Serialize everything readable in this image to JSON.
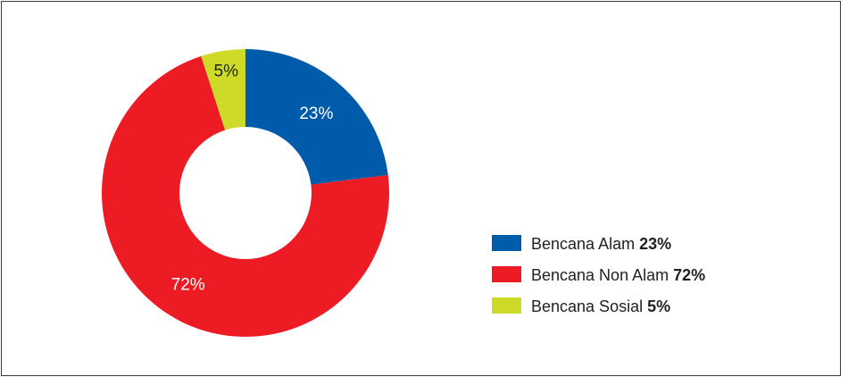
{
  "chart_data": {
    "type": "pie",
    "donut": true,
    "title": "",
    "slices": [
      {
        "label": "Bencana Alam",
        "value": 23,
        "value_label": "23%",
        "color": "#005baa",
        "label_color": "#ffffff"
      },
      {
        "label": "Bencana Non Alam",
        "value": 72,
        "value_label": "72%",
        "color": "#ed1c24",
        "label_color": "#ffffff"
      },
      {
        "label": "Bencana Sosial",
        "value": 5,
        "value_label": "5%",
        "color": "#cddb28",
        "label_color": "#222222"
      }
    ],
    "legend_placement": "right"
  }
}
